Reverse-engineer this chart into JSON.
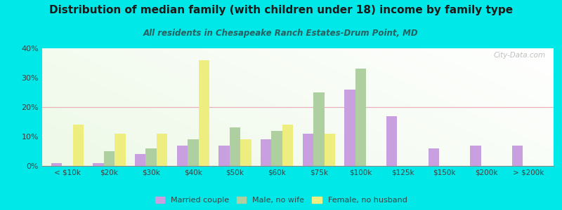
{
  "title": "Distribution of median family (with children under 18) income by family type",
  "subtitle": "All residents in Chesapeake Ranch Estates-Drum Point, MD",
  "categories": [
    "< $10k",
    "$20k",
    "$30k",
    "$40k",
    "$50k",
    "$60k",
    "$75k",
    "$100k",
    "$125k",
    "$150k",
    "$200k",
    "> $200k"
  ],
  "married_couple": [
    1,
    1,
    4,
    7,
    7,
    9,
    11,
    26,
    17,
    6,
    7,
    7
  ],
  "male_no_wife": [
    0,
    5,
    6,
    9,
    13,
    12,
    25,
    33,
    0,
    0,
    0,
    0
  ],
  "female_no_husband": [
    14,
    11,
    11,
    36,
    9,
    14,
    11,
    0,
    0,
    0,
    0,
    0
  ],
  "colors": {
    "married_couple": "#c8a0e0",
    "male_no_wife": "#aed0a0",
    "female_no_husband": "#eeee80"
  },
  "background_outer": "#00e8e8",
  "ylim": [
    0,
    40
  ],
  "yticks": [
    0,
    10,
    20,
    30,
    40
  ],
  "ytick_labels": [
    "0%",
    "10%",
    "20%",
    "30%",
    "40%"
  ],
  "watermark": "City-Data.com"
}
